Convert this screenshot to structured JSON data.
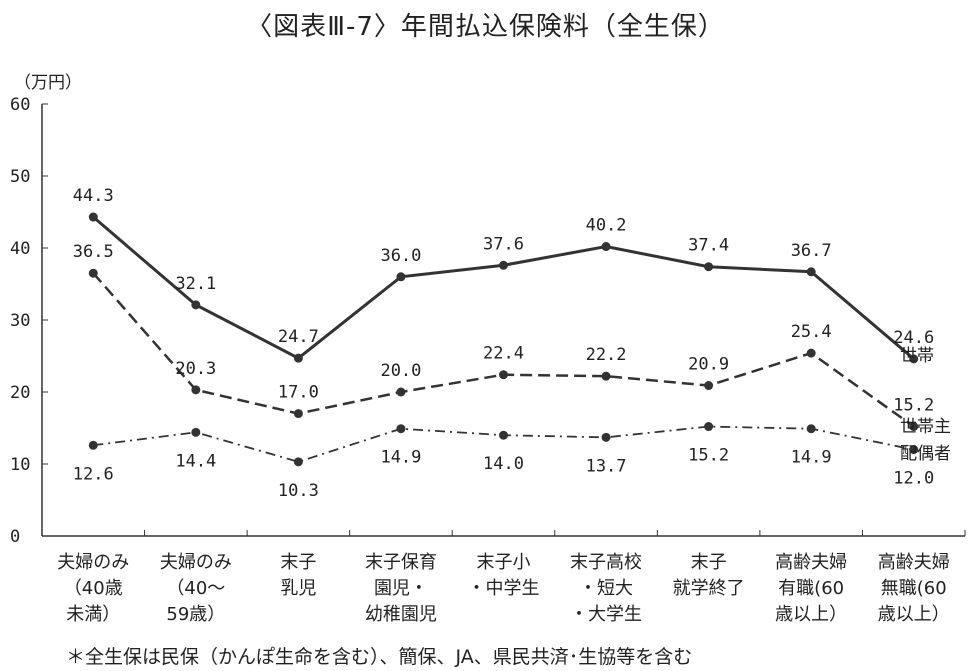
{
  "chart_data": {
    "type": "line",
    "title": "〈図表Ⅲ-7〉年間払込保険料（全生保）",
    "ylabel": "（万円）",
    "ylim": [
      0,
      60
    ],
    "yticks": [
      0,
      10,
      20,
      30,
      40,
      50,
      60
    ],
    "grid": false,
    "legend": "right, at line ends",
    "categories": [
      "夫婦のみ\n（40歳\n未満）",
      "夫婦のみ\n（40～\n59歳）",
      "末子\n乳児",
      "末子保育\n園児・\n幼稚園児",
      "末子小\n・中学生",
      "末子高校\n・短大\n・大学生",
      "末子\n就学終了",
      "高齢夫婦\n有職(60\n歳以上）",
      "高齢夫婦\n無職(60\n歳以上）"
    ],
    "series": [
      {
        "name": "世帯",
        "style": "solid",
        "values": [
          44.3,
          32.1,
          24.7,
          36.0,
          37.6,
          40.2,
          37.4,
          36.7,
          24.6
        ]
      },
      {
        "name": "世帯主",
        "style": "dashed",
        "values": [
          36.5,
          20.3,
          17.0,
          20.0,
          22.4,
          22.2,
          20.9,
          25.4,
          15.2
        ]
      },
      {
        "name": "配偶者",
        "style": "dash-dot",
        "values": [
          12.6,
          14.4,
          10.3,
          14.9,
          14.0,
          13.7,
          15.2,
          14.9,
          12.0
        ]
      }
    ],
    "colors": {
      "line": "#333333"
    }
  },
  "footnote": "＊全生保は民保（かんぽ生命を含む）、簡保、JA、県民共済･生協等を含む"
}
